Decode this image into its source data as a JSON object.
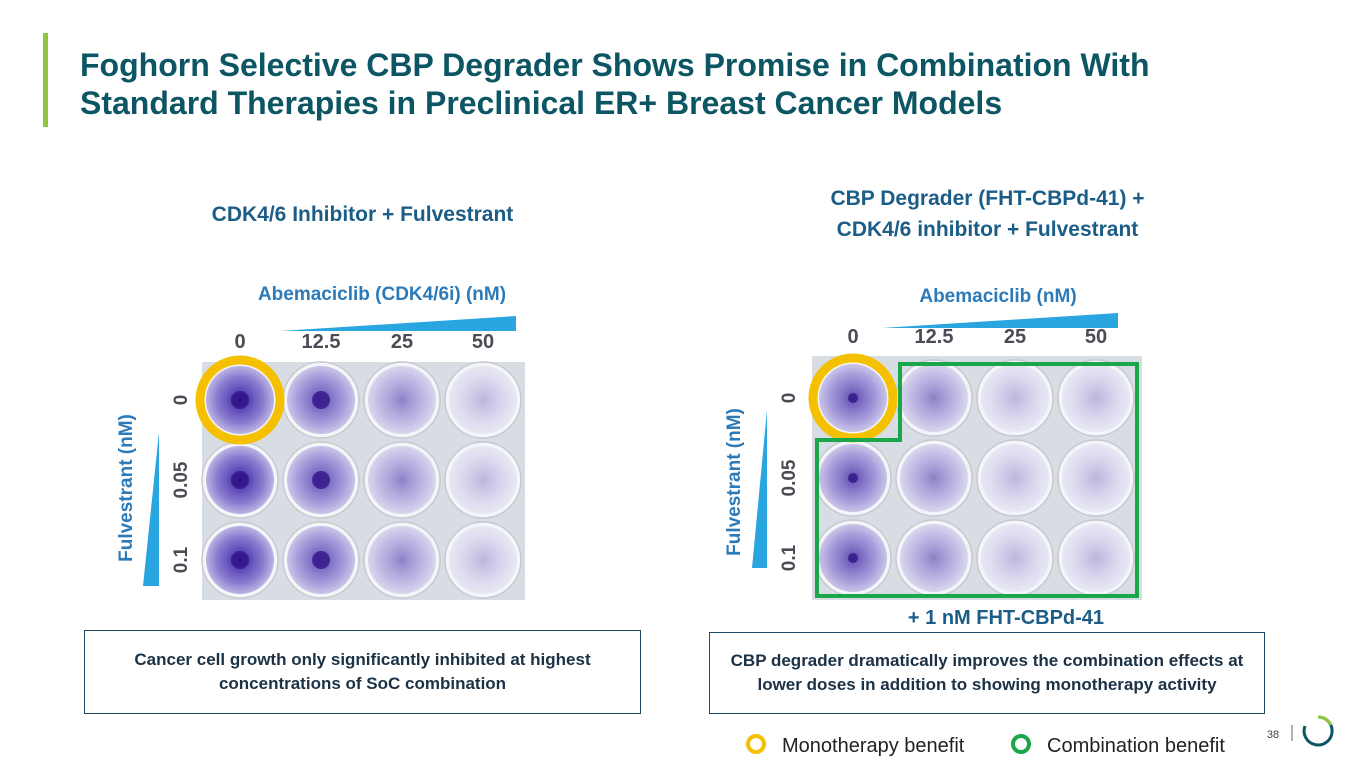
{
  "header": {
    "title_lines": [
      "Foghorn Selective CBP Degrader Shows Promise in Combination With",
      "Standard Therapies in Preclinical ER+ Breast Cancer Models"
    ]
  },
  "panels": [
    {
      "heading_lines": [
        "CDK4/6 Inhibitor + Fulvestrant"
      ],
      "x_axis_label": "Abemaciclib (CDK4/6i) (nM)",
      "columns": [
        "0",
        "12.5",
        "25",
        "50"
      ],
      "y_axis_label": "Fulvestrant (nM)",
      "rows": [
        "0",
        "0.05",
        "0.1"
      ],
      "caption": "Cancer cell growth only significantly inhibited at highest concentrations of SoC combination"
    },
    {
      "heading_lines": [
        "CBP Degrader (FHT-CBPd-41) +",
        "CDK4/6 inhibitor + Fulvestrant"
      ],
      "x_axis_label": "Abemaciclib (nM)",
      "columns": [
        "0",
        "12.5",
        "25",
        "50"
      ],
      "y_axis_label": "Fulvestrant (nM)",
      "rows": [
        "0",
        "0.05",
        "0.1"
      ],
      "footnote": "+ 1 nM FHT-CBPd-41",
      "caption": "CBP degrader dramatically improves the combination effects at lower doses in addition to showing monotherapy activity"
    }
  ],
  "legend": [
    {
      "label": "Monotherapy benefit",
      "color": "#f5c000"
    },
    {
      "label": "Combination benefit",
      "color": "#1aa64a"
    }
  ],
  "page_number": "38"
}
